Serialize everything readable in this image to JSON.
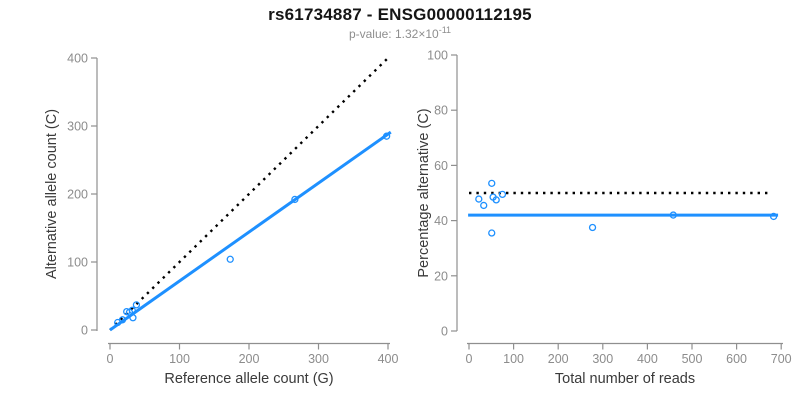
{
  "header": {
    "title": "rs61734887 - ENSG00000112195",
    "p_value_label": "p-value: ",
    "p_value_base": "1.32×10",
    "p_value_exponent": "-11"
  },
  "colors": {
    "accent_blue": "#1E90FF",
    "dotted_line_black": "#000000",
    "axis_gray": "#8f8f8f",
    "tick_label_gray": "#8c8c8c",
    "axis_title_gray": "#3a3a3a"
  },
  "chart_data": [
    {
      "type": "scatter",
      "xlabel": "Reference allele count (G)",
      "ylabel": "Alternative allele count (C)",
      "xlim": [
        0,
        400
      ],
      "ylim": [
        0,
        400
      ],
      "xticks": [
        0,
        100,
        200,
        300,
        400
      ],
      "yticks": [
        0,
        100,
        200,
        300,
        400
      ],
      "grid": false,
      "legend": "none",
      "points": [
        [
          11,
          11
        ],
        [
          18,
          15
        ],
        [
          24,
          27
        ],
        [
          28,
          26
        ],
        [
          32,
          29
        ],
        [
          33,
          18
        ],
        [
          38,
          37
        ],
        [
          173,
          104
        ],
        [
          266,
          192
        ],
        [
          398,
          285
        ]
      ],
      "lines": [
        {
          "name": "identity-line",
          "style": "dotted",
          "color": "#000000",
          "from": [
            0,
            0
          ],
          "to": [
            400,
            400
          ]
        },
        {
          "name": "fit-line",
          "style": "solid",
          "color": "#1E90FF",
          "from": [
            0,
            0
          ],
          "to": [
            404,
            291
          ]
        }
      ]
    },
    {
      "type": "scatter",
      "xlabel": "Total number of reads",
      "ylabel": "Percentage alternative (C)",
      "xlim": [
        0,
        700
      ],
      "ylim": [
        0,
        100
      ],
      "xticks": [
        0,
        100,
        200,
        300,
        400,
        500,
        600,
        700
      ],
      "yticks": [
        0,
        20,
        40,
        60,
        80,
        100
      ],
      "grid": false,
      "legend": "none",
      "points": [
        [
          22,
          47.8
        ],
        [
          33,
          45.5
        ],
        [
          51,
          53.5
        ],
        [
          51,
          35.5
        ],
        [
          54,
          48.5
        ],
        [
          61,
          47.5
        ],
        [
          75,
          49.5
        ],
        [
          277,
          37.5
        ],
        [
          458,
          42
        ],
        [
          683,
          41.5
        ]
      ],
      "lines": [
        {
          "name": "expected-percentage-line",
          "style": "dotted",
          "color": "#000000",
          "from": [
            0,
            50
          ],
          "to": [
            680,
            50
          ]
        },
        {
          "name": "mean-percentage-line",
          "style": "solid",
          "color": "#1E90FF",
          "from": [
            -2,
            42
          ],
          "to": [
            693,
            42
          ]
        }
      ]
    }
  ]
}
